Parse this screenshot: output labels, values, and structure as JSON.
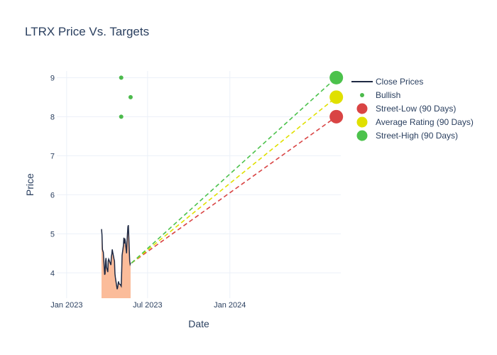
{
  "chart_data": {
    "type": "line",
    "title": "LTRX Price Vs. Targets",
    "xlabel": "Date",
    "ylabel": "Price",
    "xlim": [
      "2022-12-10",
      "2024-09-05"
    ],
    "ylim": [
      3.35,
      9.17
    ],
    "x_ticks": [
      {
        "date": "2023-01-01",
        "label": "Jan 2023"
      },
      {
        "date": "2023-07-01",
        "label": "Jul 2023"
      },
      {
        "date": "2024-01-01",
        "label": "Jan 2024"
      }
    ],
    "y_ticks": [
      4,
      5,
      6,
      7,
      8,
      9
    ],
    "grid": true,
    "legend_position": "right",
    "series": [
      {
        "name": "Close Prices",
        "kind": "line-area",
        "color": "#1f2a44",
        "fill_color": "#fbbc9a",
        "points": [
          [
            "2023-03-20",
            5.12
          ],
          [
            "2023-03-21",
            4.98
          ],
          [
            "2023-03-22",
            4.6
          ],
          [
            "2023-03-23",
            4.56
          ],
          [
            "2023-03-24",
            4.53
          ],
          [
            "2023-03-27",
            3.95
          ],
          [
            "2023-03-28",
            3.98
          ],
          [
            "2023-03-29",
            4.3
          ],
          [
            "2023-03-30",
            4.38
          ],
          [
            "2023-03-31",
            4.15
          ],
          [
            "2023-04-03",
            4.02
          ],
          [
            "2023-04-04",
            4.3
          ],
          [
            "2023-04-05",
            4.35
          ],
          [
            "2023-04-06",
            4.32
          ],
          [
            "2023-04-10",
            4.2
          ],
          [
            "2023-04-11",
            4.42
          ],
          [
            "2023-04-12",
            4.48
          ],
          [
            "2023-04-13",
            4.6
          ],
          [
            "2023-04-14",
            4.53
          ],
          [
            "2023-04-17",
            4.35
          ],
          [
            "2023-04-18",
            4.3
          ],
          [
            "2023-04-19",
            3.98
          ],
          [
            "2023-04-20",
            3.88
          ],
          [
            "2023-04-21",
            3.8
          ],
          [
            "2023-04-24",
            3.58
          ],
          [
            "2023-04-25",
            3.62
          ],
          [
            "2023-04-26",
            3.7
          ],
          [
            "2023-04-27",
            3.78
          ],
          [
            "2023-04-28",
            3.72
          ],
          [
            "2023-05-01",
            3.7
          ],
          [
            "2023-05-02",
            3.68
          ],
          [
            "2023-05-03",
            3.66
          ],
          [
            "2023-05-04",
            4.0
          ],
          [
            "2023-05-05",
            4.45
          ],
          [
            "2023-05-08",
            4.7
          ],
          [
            "2023-05-09",
            4.9
          ],
          [
            "2023-05-10",
            4.75
          ],
          [
            "2023-05-11",
            4.88
          ],
          [
            "2023-05-12",
            4.82
          ],
          [
            "2023-05-15",
            4.5
          ],
          [
            "2023-05-16",
            4.8
          ],
          [
            "2023-05-17",
            5.0
          ],
          [
            "2023-05-18",
            5.18
          ],
          [
            "2023-05-19",
            5.22
          ],
          [
            "2023-05-22",
            4.3
          ],
          [
            "2023-05-23",
            4.22
          ],
          [
            "2023-05-24",
            4.25
          ]
        ]
      },
      {
        "name": "Bullish",
        "kind": "markers",
        "color": "#4cba4c",
        "points": [
          [
            "2023-05-03",
            9.0
          ],
          [
            "2023-05-03",
            8.0
          ],
          [
            "2023-05-24",
            8.5
          ]
        ]
      },
      {
        "name": "Street-Low (90 Days)",
        "kind": "target",
        "color": "#d94444",
        "start": [
          "2023-05-26",
          4.25
        ],
        "end": [
          "2024-08-26",
          8.0
        ]
      },
      {
        "name": "Average Rating (90 Days)",
        "kind": "target",
        "color": "#e0e000",
        "start": [
          "2023-05-26",
          4.25
        ],
        "end": [
          "2024-08-26",
          8.5
        ]
      },
      {
        "name": "Street-High (90 Days)",
        "kind": "target",
        "color": "#4cc24c",
        "start": [
          "2023-05-26",
          4.25
        ],
        "end": [
          "2024-08-26",
          9.0
        ]
      }
    ]
  }
}
